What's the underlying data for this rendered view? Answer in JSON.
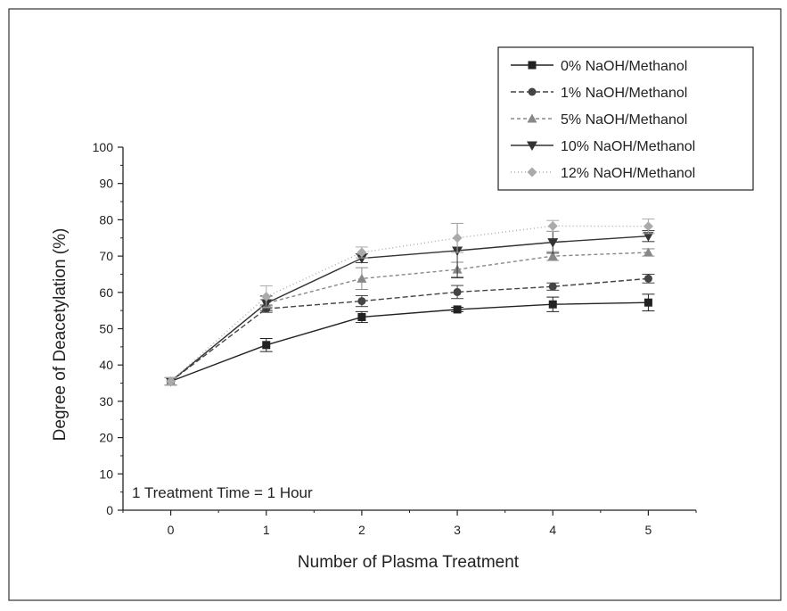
{
  "chart_data": {
    "type": "line",
    "xlabel": "Number of Plasma Treatment",
    "ylabel": "Degree of Deacetylation (%)",
    "annotation": "1 Treatment Time = 1 Hour",
    "x": [
      0,
      1,
      2,
      3,
      4,
      5
    ],
    "xlim": [
      -0.5,
      5.5
    ],
    "ylim": [
      0,
      100
    ],
    "xticks": [
      "0",
      "1",
      "2",
      "3",
      "4",
      "5"
    ],
    "yticks": [
      "0",
      "10",
      "20",
      "30",
      "40",
      "50",
      "60",
      "70",
      "80",
      "90",
      "100"
    ],
    "grid": false,
    "legend_position": "top-right",
    "series": [
      {
        "name": "0% NaOH/Methanol",
        "marker": "square",
        "color": "#222222",
        "dash": "",
        "values": [
          35.5,
          45.5,
          53.2,
          55.3,
          56.7,
          57.2
        ],
        "errors": [
          1.0,
          1.8,
          1.5,
          0.6,
          2.0,
          2.3
        ]
      },
      {
        "name": "1% NaOH/Methanol",
        "marker": "circle",
        "color": "#444444",
        "dash": "6 3",
        "values": [
          35.5,
          55.5,
          57.6,
          60.1,
          61.6,
          63.8
        ],
        "errors": [
          1.0,
          1.0,
          1.5,
          1.8,
          1.0,
          1.2
        ]
      },
      {
        "name": "5% NaOH/Methanol",
        "marker": "triangle-up",
        "color": "#888888",
        "dash": "4 3",
        "values": [
          35.5,
          57.0,
          63.8,
          66.3,
          70.0,
          71.0
        ],
        "errors": [
          1.0,
          1.0,
          3.0,
          2.0,
          1.2,
          1.0
        ]
      },
      {
        "name": "10% NaOH/Methanol",
        "marker": "triangle-down",
        "color": "#333333",
        "dash": "",
        "values": [
          35.5,
          57.0,
          69.4,
          71.5,
          73.8,
          75.5
        ],
        "errors": [
          1.0,
          2.0,
          1.2,
          7.5,
          3.0,
          1.5
        ]
      },
      {
        "name": "12% NaOH/Methanol",
        "marker": "diamond",
        "color": "#aaaaaa",
        "dash": "1 3",
        "values": [
          35.5,
          58.8,
          71.0,
          75.0,
          78.3,
          78.2
        ],
        "errors": [
          1.0,
          3.0,
          1.5,
          4.0,
          1.5,
          2.0
        ]
      }
    ]
  }
}
